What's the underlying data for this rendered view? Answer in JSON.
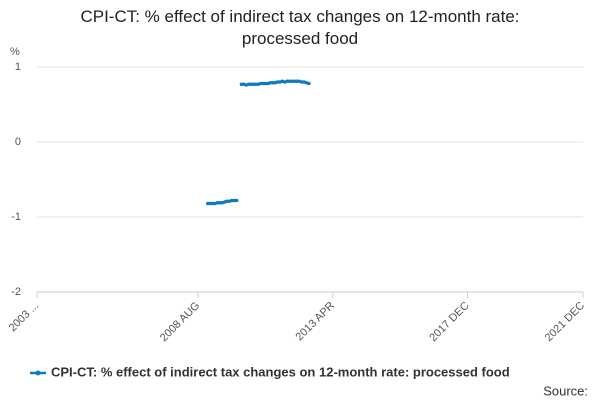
{
  "chart_data": {
    "type": "line",
    "title": "CPI-CT: % effect of indirect tax changes on 12-month rate: processed food",
    "y_label": "%",
    "source_label": "Source:",
    "x": [
      "2008-12",
      "2009-01",
      "2009-02",
      "2009-03",
      "2009-04",
      "2009-05",
      "2009-06",
      "2009-07",
      "2009-08",
      "2009-09",
      "2009-10",
      "2009-11",
      "2009-12",
      "2010-01",
      "2010-02",
      "2010-03",
      "2010-04",
      "2010-05",
      "2010-06",
      "2010-07",
      "2010-08",
      "2010-09",
      "2010-10",
      "2010-11",
      "2010-12",
      "2011-01",
      "2011-02",
      "2011-03",
      "2011-04",
      "2011-05",
      "2011-06",
      "2011-07",
      "2011-08",
      "2011-09",
      "2011-10",
      "2011-11",
      "2011-12",
      "2012-01",
      "2012-02",
      "2012-03",
      "2012-04",
      "2012-05",
      "2012-06"
    ],
    "series": [
      {
        "name": "CPI-CT: % effect of indirect tax changes on 12-month rate: processed food",
        "color": "#0f7bbd",
        "values": [
          -0.82,
          -0.82,
          -0.82,
          -0.82,
          -0.81,
          -0.81,
          -0.81,
          -0.8,
          -0.79,
          -0.79,
          -0.78,
          -0.78,
          -0.78,
          null,
          0.77,
          0.77,
          0.76,
          0.77,
          0.77,
          0.77,
          0.77,
          0.77,
          0.78,
          0.78,
          0.78,
          0.78,
          0.79,
          0.79,
          0.79,
          0.8,
          0.8,
          0.81,
          0.8,
          0.81,
          0.81,
          0.81,
          0.81,
          0.81,
          0.81,
          0.8,
          0.8,
          0.79,
          0.78
        ]
      }
    ],
    "xlim": [
      "2003-01",
      "2021-12"
    ],
    "xticks": [
      {
        "value": "2003-01",
        "label": "2003 ..."
      },
      {
        "value": "2008-08",
        "label": "2008 AUG"
      },
      {
        "value": "2013-04",
        "label": "2013 APR"
      },
      {
        "value": "2017-12",
        "label": "2017 DEC"
      },
      {
        "value": "2021-12",
        "label": "2021 DEC"
      }
    ],
    "ylim": [
      -2,
      1
    ],
    "yticks": [
      1,
      0,
      -1,
      -2
    ],
    "grid": true,
    "legend": "bottom"
  }
}
